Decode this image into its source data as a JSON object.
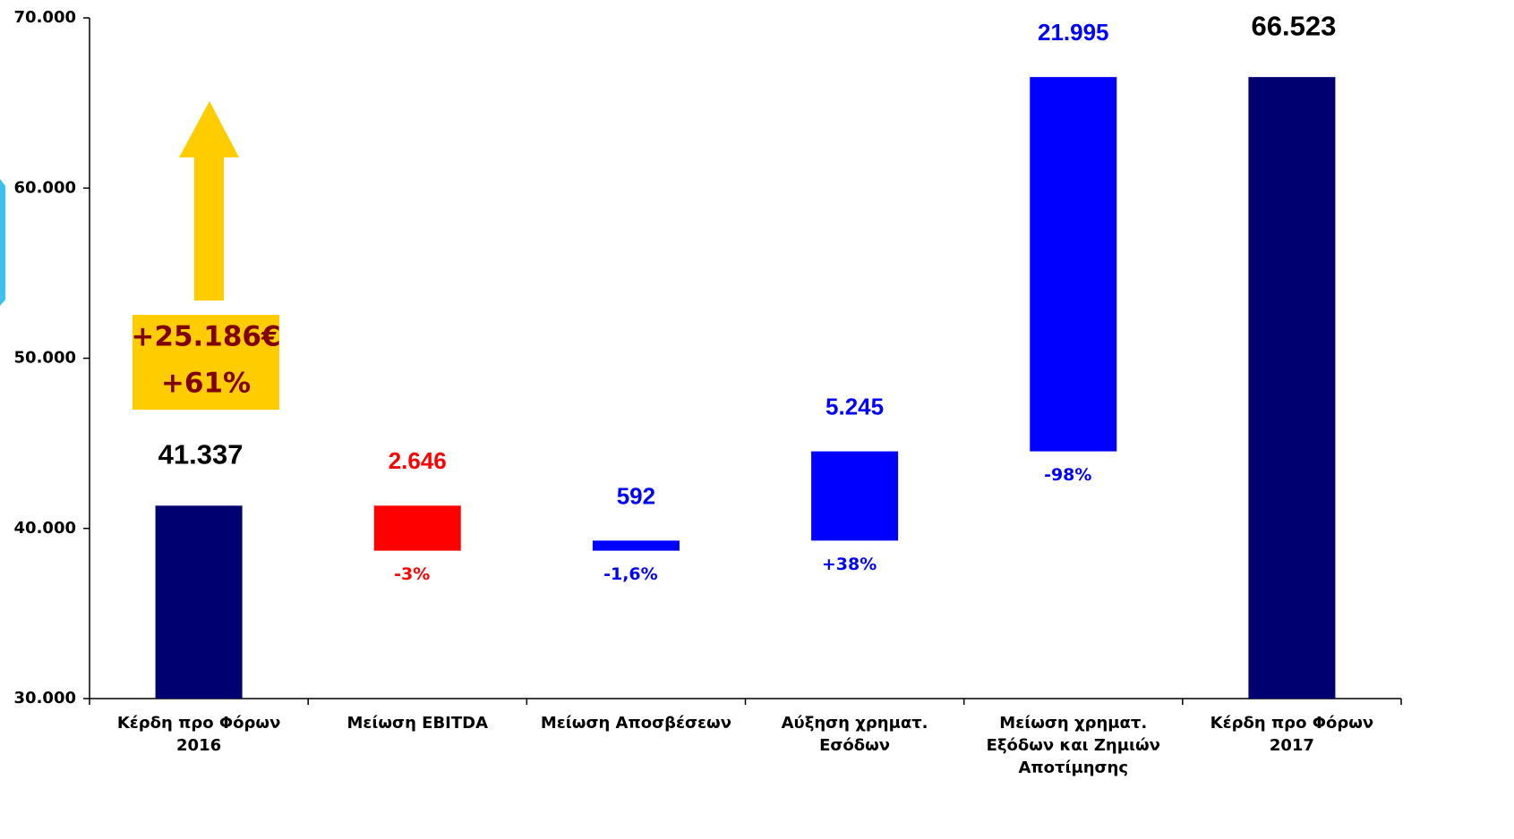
{
  "chart_data": {
    "type": "waterfall",
    "categories": [
      "Κέρδη προ Φόρων 2016",
      "Μείωση EBITDA",
      "Μείωση Αποσβέσεων",
      "Αύξηση χρηματ. Εσόδων",
      "Μείωση χρηματ. Εξόδων και Ζημιών Αποτίμησης",
      "Κέρδη προ Φόρων 2017"
    ],
    "values": [
      41337,
      -2646,
      592,
      5245,
      21995,
      66523
    ],
    "value_labels": [
      "41.337",
      "2.646",
      "592",
      "5.245",
      "21.995",
      "66.523"
    ],
    "percent_labels": [
      null,
      "-3%",
      "-1,6%",
      "+38%",
      "-98%",
      null
    ],
    "colors": [
      "#000070",
      "#ff0000",
      "#0000ff",
      "#0000ff",
      "#0000ff",
      "#000070"
    ],
    "label_colors": [
      "#000000",
      "#ff0000",
      "#0000ff",
      "#0000ff",
      "#0000ff",
      "#000000"
    ],
    "ylim": [
      30000,
      70000
    ],
    "yticks": [
      {
        "value": 30000,
        "label": "30.000"
      },
      {
        "value": 40000,
        "label": "40.000"
      },
      {
        "value": 50000,
        "label": "50.000"
      },
      {
        "value": 60000,
        "label": "60.000"
      },
      {
        "value": 70000,
        "label": "70.000"
      }
    ],
    "annotations": [
      "+25.186€",
      "+61%"
    ]
  }
}
